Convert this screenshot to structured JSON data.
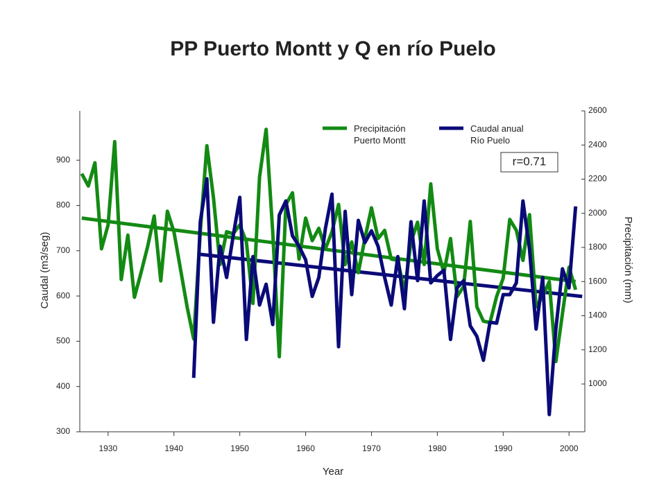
{
  "chart_data": {
    "type": "line",
    "title": "PP Puerto Montt y Q en río Puelo",
    "x_label": "Year",
    "y_label": "Caudal (m3/seg)",
    "y2_label": "Precipitación (mm)",
    "annotation": "r=0.71",
    "xlim": [
      1925.7,
      2002.4
    ],
    "xticks": [
      1930,
      1940,
      1950,
      1960,
      1970,
      1980,
      1990,
      2000
    ],
    "ylim": [
      300,
      1009
    ],
    "yticks": [
      300,
      400,
      500,
      600,
      700,
      800,
      900
    ],
    "y2lim": [
      720,
      2600
    ],
    "y2ticks": [
      1000,
      1200,
      1400,
      1600,
      1800,
      2000,
      2200,
      2400,
      2600
    ],
    "series": [
      {
        "name": "Precipitación Puerto Montt",
        "color": "#138a13",
        "axis": "y2",
        "x": [
          1926,
          1927,
          1928,
          1929,
          1930,
          1931,
          1932,
          1933,
          1934,
          1935,
          1936,
          1937,
          1938,
          1939,
          1940,
          1941,
          1942,
          1943,
          1944,
          1945,
          1946,
          1947,
          1948,
          1949,
          1950,
          1951,
          1952,
          1953,
          1954,
          1955,
          1956,
          1957,
          1958,
          1959,
          1960,
          1961,
          1962,
          1963,
          1964,
          1965,
          1966,
          1967,
          1968,
          1969,
          1970,
          1971,
          1972,
          1973,
          1974,
          1975,
          1976,
          1977,
          1978,
          1979,
          1980,
          1981,
          1982,
          1983,
          1984,
          1985,
          1986,
          1987,
          1988,
          1989,
          1990,
          1991,
          1992,
          1993,
          1994,
          1995,
          1996,
          1997,
          1998,
          1999,
          2000,
          2001
        ],
        "values": [
          2232,
          2160,
          2296,
          1792,
          1932,
          2420,
          1612,
          1872,
          1508,
          1652,
          1804,
          1984,
          1604,
          2012,
          1892,
          1672,
          1452,
          1264,
          1892,
          2396,
          2092,
          1700,
          1892,
          1880,
          1932,
          1832,
          1472,
          2212,
          2492,
          1892,
          1160,
          2052,
          2120,
          1732,
          1972,
          1840,
          1912,
          1792,
          1892,
          2052,
          1700,
          1832,
          1652,
          1852,
          2032,
          1852,
          1900,
          1732,
          1724,
          1540,
          1832,
          1948,
          1700,
          2172,
          1792,
          1652,
          1852,
          1512,
          1572,
          1952,
          1452,
          1368,
          1360,
          1512,
          1620,
          1964,
          1900,
          1724,
          1992,
          1452,
          1512,
          1600,
          1132,
          1412,
          1684,
          1552
        ]
      },
      {
        "name": "Caudal anual Río Puelo",
        "color": "#0a0a78",
        "axis": "y",
        "x": [
          1943,
          1944,
          1945,
          1946,
          1947,
          1948,
          1949,
          1950,
          1951,
          1952,
          1953,
          1954,
          1955,
          1956,
          1957,
          1958,
          1959,
          1960,
          1961,
          1962,
          1963,
          1964,
          1965,
          1966,
          1967,
          1968,
          1969,
          1970,
          1971,
          1972,
          1973,
          1974,
          1975,
          1976,
          1977,
          1978,
          1979,
          1980,
          1981,
          1982,
          1983,
          1984,
          1985,
          1986,
          1987,
          1988,
          1989,
          1990,
          1991,
          1992,
          1993,
          1994,
          1995,
          1996,
          1997,
          1998,
          1999,
          2000,
          2001
        ],
        "values": [
          419,
          764,
          859,
          542,
          710,
          641,
          733,
          818,
          504,
          687,
          580,
          626,
          537,
          779,
          810,
          733,
          710,
          680,
          599,
          641,
          749,
          825,
          488,
          787,
          603,
          767,
          718,
          744,
          710,
          641,
          580,
          687,
          572,
          764,
          634,
          810,
          629,
          645,
          657,
          504,
          618,
          634,
          534,
          511,
          458,
          542,
          540,
          603,
          603,
          629,
          810,
          703,
          527,
          641,
          338,
          527,
          660,
          618,
          798
        ]
      }
    ],
    "trends": [
      {
        "color": "#138a13",
        "axis": "y2",
        "x": [
          1926,
          2001
        ],
        "values": [
          1972,
          1600
        ]
      },
      {
        "color": "#0a0a78",
        "axis": "y",
        "x": [
          1944,
          2002
        ],
        "values": [
          692,
          599
        ]
      }
    ]
  }
}
